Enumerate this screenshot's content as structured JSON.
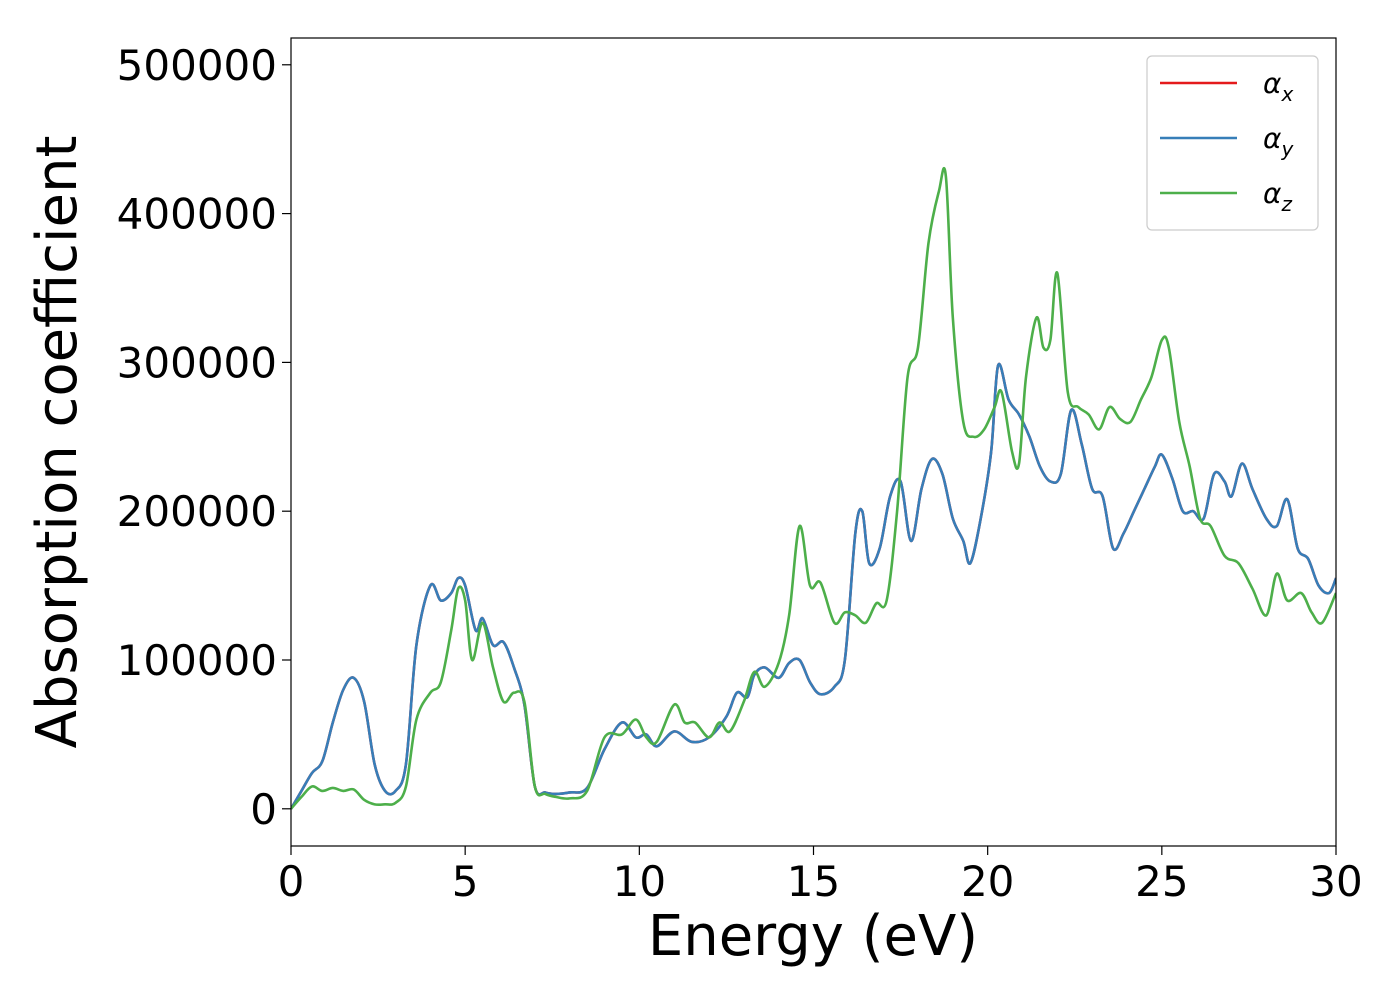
{
  "chart_data": {
    "type": "line",
    "xlabel": "Energy (eV)",
    "ylabel": "Absorption coefficient",
    "xlim": [
      0,
      30
    ],
    "ylim": [
      -25000,
      518000
    ],
    "x_ticks": [
      0,
      5,
      10,
      15,
      20,
      25,
      30
    ],
    "x_tick_labels": [
      "0",
      "5",
      "10",
      "15",
      "20",
      "25",
      "30"
    ],
    "y_ticks": [
      0,
      100000,
      200000,
      300000,
      400000,
      500000
    ],
    "y_tick_labels": [
      "0",
      "100000",
      "200000",
      "300000",
      "400000",
      "500000"
    ],
    "grid": false,
    "legend_position": "top-right",
    "series": [
      {
        "name": "α",
        "subscript": "x",
        "color": "#e41a1c",
        "x": [
          0,
          0.3,
          0.6,
          0.9,
          1.2,
          1.5,
          1.8,
          2.1,
          2.4,
          2.7,
          3.0,
          3.3,
          3.6,
          4.0,
          4.3,
          4.6,
          4.8,
          5.0,
          5.3,
          5.5,
          5.8,
          6.1,
          6.4,
          6.7,
          7.0,
          7.3,
          7.6,
          8.0,
          8.5,
          9.0,
          9.5,
          9.9,
          10.2,
          10.5,
          11.0,
          11.5,
          12.0,
          12.5,
          12.8,
          13.1,
          13.3,
          13.6,
          14.0,
          14.3,
          14.6,
          14.9,
          15.2,
          15.6,
          15.9,
          16.2,
          16.4,
          16.6,
          16.9,
          17.2,
          17.5,
          17.8,
          18.1,
          18.4,
          18.7,
          19.0,
          19.3,
          19.5,
          19.8,
          20.1,
          20.3,
          20.6,
          20.9,
          21.2,
          21.5,
          21.8,
          22.1,
          22.4,
          22.7,
          23.0,
          23.3,
          23.6,
          23.9,
          24.2,
          24.5,
          24.8,
          25.0,
          25.3,
          25.6,
          25.9,
          26.2,
          26.5,
          26.8,
          27.0,
          27.3,
          27.6,
          28.0,
          28.3,
          28.6,
          28.9,
          29.2,
          29.5,
          29.8,
          30.0
        ],
        "values": [
          0,
          12000,
          24000,
          32000,
          58000,
          80000,
          88000,
          72000,
          30000,
          12000,
          12000,
          30000,
          110000,
          150000,
          140000,
          145000,
          155000,
          150000,
          120000,
          128000,
          110000,
          112000,
          95000,
          70000,
          15000,
          11000,
          10000,
          11000,
          14000,
          40000,
          58000,
          48000,
          50000,
          42000,
          52000,
          45000,
          48000,
          62000,
          78000,
          75000,
          90000,
          95000,
          88000,
          98000,
          100000,
          85000,
          77000,
          82000,
          100000,
          185000,
          200000,
          165000,
          175000,
          210000,
          220000,
          180000,
          215000,
          235000,
          225000,
          195000,
          180000,
          165000,
          195000,
          240000,
          298000,
          275000,
          265000,
          250000,
          230000,
          220000,
          225000,
          268000,
          245000,
          215000,
          210000,
          175000,
          185000,
          200000,
          215000,
          230000,
          238000,
          222000,
          200000,
          200000,
          195000,
          225000,
          220000,
          210000,
          232000,
          215000,
          195000,
          190000,
          208000,
          175000,
          168000,
          150000,
          145000,
          155000
        ]
      },
      {
        "name": "α",
        "subscript": "y",
        "color": "#377eb8",
        "x": [
          0,
          0.3,
          0.6,
          0.9,
          1.2,
          1.5,
          1.8,
          2.1,
          2.4,
          2.7,
          3.0,
          3.3,
          3.6,
          4.0,
          4.3,
          4.6,
          4.8,
          5.0,
          5.3,
          5.5,
          5.8,
          6.1,
          6.4,
          6.7,
          7.0,
          7.3,
          7.6,
          8.0,
          8.5,
          9.0,
          9.5,
          9.9,
          10.2,
          10.5,
          11.0,
          11.5,
          12.0,
          12.5,
          12.8,
          13.1,
          13.3,
          13.6,
          14.0,
          14.3,
          14.6,
          14.9,
          15.2,
          15.6,
          15.9,
          16.2,
          16.4,
          16.6,
          16.9,
          17.2,
          17.5,
          17.8,
          18.1,
          18.4,
          18.7,
          19.0,
          19.3,
          19.5,
          19.8,
          20.1,
          20.3,
          20.6,
          20.9,
          21.2,
          21.5,
          21.8,
          22.1,
          22.4,
          22.7,
          23.0,
          23.3,
          23.6,
          23.9,
          24.2,
          24.5,
          24.8,
          25.0,
          25.3,
          25.6,
          25.9,
          26.2,
          26.5,
          26.8,
          27.0,
          27.3,
          27.6,
          28.0,
          28.3,
          28.6,
          28.9,
          29.2,
          29.5,
          29.8,
          30.0
        ],
        "values": [
          0,
          12000,
          24000,
          32000,
          58000,
          80000,
          88000,
          72000,
          30000,
          12000,
          12000,
          30000,
          110000,
          150000,
          140000,
          145000,
          155000,
          150000,
          120000,
          128000,
          110000,
          112000,
          95000,
          70000,
          15000,
          11000,
          10000,
          11000,
          14000,
          40000,
          58000,
          48000,
          50000,
          42000,
          52000,
          45000,
          48000,
          62000,
          78000,
          75000,
          90000,
          95000,
          88000,
          98000,
          100000,
          85000,
          77000,
          82000,
          100000,
          185000,
          200000,
          165000,
          175000,
          210000,
          220000,
          180000,
          215000,
          235000,
          225000,
          195000,
          180000,
          165000,
          195000,
          240000,
          298000,
          275000,
          265000,
          250000,
          230000,
          220000,
          225000,
          268000,
          245000,
          215000,
          210000,
          175000,
          185000,
          200000,
          215000,
          230000,
          238000,
          222000,
          200000,
          200000,
          195000,
          225000,
          220000,
          210000,
          232000,
          215000,
          195000,
          190000,
          208000,
          175000,
          168000,
          150000,
          145000,
          155000
        ]
      },
      {
        "name": "α",
        "subscript": "z",
        "color": "#4daf4a",
        "x": [
          0,
          0.3,
          0.6,
          0.9,
          1.2,
          1.5,
          1.8,
          2.1,
          2.4,
          2.7,
          3.0,
          3.3,
          3.6,
          4.0,
          4.3,
          4.6,
          4.8,
          5.0,
          5.2,
          5.5,
          5.8,
          6.1,
          6.4,
          6.7,
          7.0,
          7.3,
          7.6,
          8.0,
          8.5,
          9.0,
          9.5,
          9.9,
          10.2,
          10.5,
          11.0,
          11.3,
          11.6,
          12.0,
          12.3,
          12.6,
          13.0,
          13.3,
          13.6,
          14.0,
          14.3,
          14.6,
          14.9,
          15.2,
          15.6,
          15.9,
          16.2,
          16.5,
          16.8,
          17.1,
          17.4,
          17.7,
          18.0,
          18.3,
          18.6,
          18.8,
          19.0,
          19.3,
          19.6,
          19.9,
          20.2,
          20.4,
          20.7,
          20.9,
          21.1,
          21.4,
          21.6,
          21.8,
          22.0,
          22.3,
          22.6,
          22.9,
          23.2,
          23.5,
          23.8,
          24.1,
          24.4,
          24.7,
          25.0,
          25.2,
          25.5,
          25.8,
          26.1,
          26.4,
          26.8,
          27.2,
          27.6,
          28.0,
          28.3,
          28.6,
          29.0,
          29.3,
          29.6,
          30.0
        ],
        "values": [
          0,
          8000,
          15000,
          12000,
          14000,
          12000,
          13000,
          6000,
          3000,
          3000,
          4000,
          15000,
          60000,
          78000,
          85000,
          120000,
          148000,
          140000,
          100000,
          125000,
          95000,
          72000,
          78000,
          72000,
          15000,
          10000,
          8000,
          7000,
          12000,
          48000,
          50000,
          60000,
          48000,
          45000,
          70000,
          58000,
          58000,
          48000,
          58000,
          52000,
          72000,
          92000,
          82000,
          98000,
          130000,
          190000,
          150000,
          152000,
          125000,
          132000,
          130000,
          125000,
          138000,
          140000,
          200000,
          290000,
          310000,
          380000,
          415000,
          425000,
          330000,
          260000,
          250000,
          255000,
          270000,
          280000,
          240000,
          232000,
          290000,
          330000,
          310000,
          315000,
          360000,
          280000,
          270000,
          265000,
          255000,
          270000,
          262000,
          260000,
          275000,
          290000,
          315000,
          310000,
          260000,
          230000,
          195000,
          190000,
          170000,
          165000,
          148000,
          130000,
          158000,
          140000,
          145000,
          132000,
          125000,
          145000
        ]
      }
    ]
  }
}
